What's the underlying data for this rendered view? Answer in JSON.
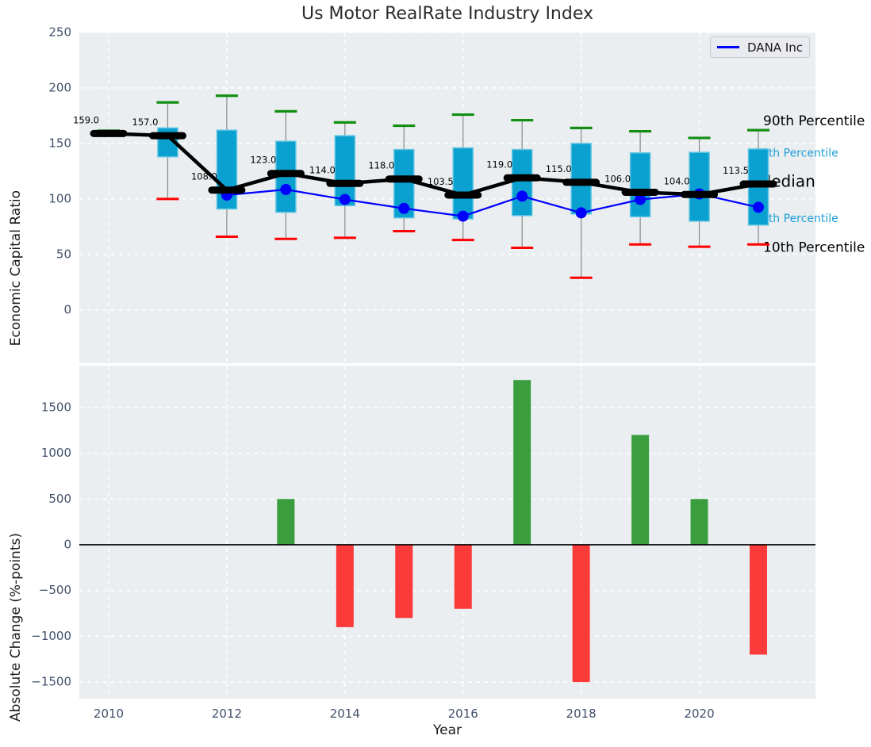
{
  "title": "Us Motor RealRate Industry Index",
  "legend": {
    "label": "DANA Inc"
  },
  "colors": {
    "box_fill": "#0aa0cf",
    "box_edge": "#5fc4e2",
    "whisker": "#888888",
    "cap_high": "#128e12",
    "cap_low": "#fd0000",
    "median": "#000000",
    "series_line": "#0000ff",
    "bar_positive": "#3a9e3f",
    "bar_negative": "#fb3a3a",
    "panel_bg": "#eaeef0",
    "grid": "#ffffff",
    "tick_label": "#42506a",
    "text": "#262626",
    "annotation_accent": "#1f9fd9"
  },
  "chart_data": [
    {
      "type": "boxplot",
      "panel": "top",
      "title": "Us Motor RealRate Industry Index",
      "ylabel": "Economic Capital Ratio",
      "ylim": [
        -48,
        250
      ],
      "yticks": [
        250,
        200,
        150,
        100,
        50,
        0
      ],
      "grid": true,
      "legend_position": "upper right",
      "categories": [
        2010,
        2011,
        2012,
        2013,
        2014,
        2015,
        2016,
        2017,
        2018,
        2019,
        2020,
        2021
      ],
      "xticks": [
        2010,
        2012,
        2014,
        2016,
        2018,
        2020
      ],
      "boxes": [
        {
          "year": 2010,
          "p10": 157.5,
          "q1": 158.0,
          "median": 159.0,
          "q3": 160.0,
          "p90": 161.5,
          "median_label": "159.0"
        },
        {
          "year": 2011,
          "p10": 100.0,
          "q1": 138.0,
          "median": 157.0,
          "q3": 164.0,
          "p90": 187.0,
          "median_label": "157.0"
        },
        {
          "year": 2012,
          "p10": 66.0,
          "q1": 91.0,
          "median": 108.0,
          "q3": 162.0,
          "p90": 193.0,
          "median_label": "108.0"
        },
        {
          "year": 2013,
          "p10": 64.0,
          "q1": 88.0,
          "median": 123.0,
          "q3": 152.0,
          "p90": 179.0,
          "median_label": "123.0"
        },
        {
          "year": 2014,
          "p10": 65.0,
          "q1": 94.0,
          "median": 114.0,
          "q3": 157.0,
          "p90": 169.0,
          "median_label": "114.0"
        },
        {
          "year": 2015,
          "p10": 71.0,
          "q1": 83.0,
          "median": 118.0,
          "q3": 144.5,
          "p90": 166.0,
          "median_label": "118.0"
        },
        {
          "year": 2016,
          "p10": 63.0,
          "q1": 82.0,
          "median": 103.5,
          "q3": 146.0,
          "p90": 176.0,
          "median_label": "103.5"
        },
        {
          "year": 2017,
          "p10": 56.0,
          "q1": 85.0,
          "median": 119.0,
          "q3": 144.5,
          "p90": 171.0,
          "median_label": "119.0"
        },
        {
          "year": 2018,
          "p10": 29.0,
          "q1": 86.5,
          "median": 115.0,
          "q3": 150.0,
          "p90": 164.0,
          "median_label": "115.0"
        },
        {
          "year": 2019,
          "p10": 59.0,
          "q1": 84.0,
          "median": 106.0,
          "q3": 141.5,
          "p90": 161.0,
          "median_label": "106.0"
        },
        {
          "year": 2020,
          "p10": 57.0,
          "q1": 80.0,
          "median": 104.0,
          "q3": 142.0,
          "p90": 155.0,
          "median_label": "104.0"
        },
        {
          "year": 2021,
          "p10": 59.0,
          "q1": 76.5,
          "median": 113.5,
          "q3": 145.0,
          "p90": 162.0,
          "median_label": "113.5"
        }
      ],
      "series": [
        {
          "name": "DANA Inc",
          "x": [
            2012,
            2013,
            2014,
            2015,
            2016,
            2017,
            2018,
            2019,
            2020,
            2021
          ],
          "y": [
            103.5,
            108.5,
            99.5,
            91.5,
            84.5,
            102.5,
            87.5,
            99.5,
            104.5,
            92.5
          ]
        }
      ],
      "annotations": [
        {
          "text": "90th Percentile",
          "y": 170,
          "style": "black-large"
        },
        {
          "text": "75th Percentile",
          "y": 141,
          "style": "accent-small"
        },
        {
          "text": "Median",
          "y": 115,
          "style": "black-xlarge"
        },
        {
          "text": "25th Percentile",
          "y": 82,
          "style": "accent-small"
        },
        {
          "text": "10th Percentile",
          "y": 56,
          "style": "black-large"
        }
      ]
    },
    {
      "type": "bar",
      "panel": "bottom",
      "ylabel": "Absolute Change (%-points)",
      "xlabel": "Year",
      "ylim": [
        -1681,
        1958
      ],
      "yticks": [
        1500,
        1000,
        500,
        0,
        -500,
        -1000,
        -1500
      ],
      "grid": true,
      "zero_line": true,
      "categories": [
        2010,
        2011,
        2012,
        2013,
        2014,
        2015,
        2016,
        2017,
        2018,
        2019,
        2020,
        2021
      ],
      "xticks": [
        2010,
        2012,
        2014,
        2016,
        2018,
        2020
      ],
      "values": [
        0,
        0,
        0,
        500,
        -900,
        -800,
        -700,
        1800,
        -1500,
        1200,
        500,
        -1200
      ]
    }
  ]
}
